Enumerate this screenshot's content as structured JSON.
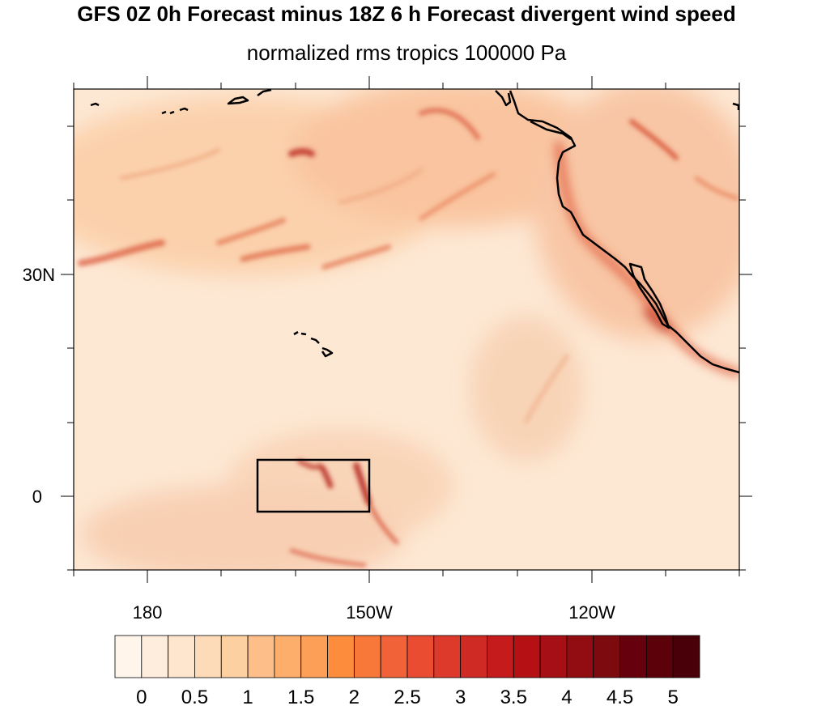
{
  "title": "GFS 0Z 0h Forecast minus 18Z 6 h Forecast divergent wind speed",
  "subtitle": "normalized rms tropics 100000 Pa",
  "axes": {
    "y_ticks": [
      "30N",
      "0"
    ],
    "x_ticks": [
      "180",
      "150W",
      "120W"
    ]
  },
  "colorbar": {
    "labels": [
      "0",
      "0.5",
      "1",
      "1.5",
      "2",
      "2.5",
      "3",
      "3.5",
      "4",
      "4.5",
      "5"
    ],
    "colors": [
      "#fff5eb",
      "#feeddc",
      "#fee6ce",
      "#fddbb8",
      "#fdd0a2",
      "#fdbe8a",
      "#fdae6b",
      "#fd9f57",
      "#fd8d3c",
      "#f8783a",
      "#f16238",
      "#e94c31",
      "#de3a2b",
      "#d02a24",
      "#c51b1d",
      "#b51014",
      "#a50f15",
      "#920d12",
      "#7d0a0f",
      "#67000d",
      "#5c000a",
      "#4a0008"
    ]
  },
  "colors": {
    "background_field": "#fde6cf",
    "coastline": "#000000",
    "box": "#000000"
  }
}
